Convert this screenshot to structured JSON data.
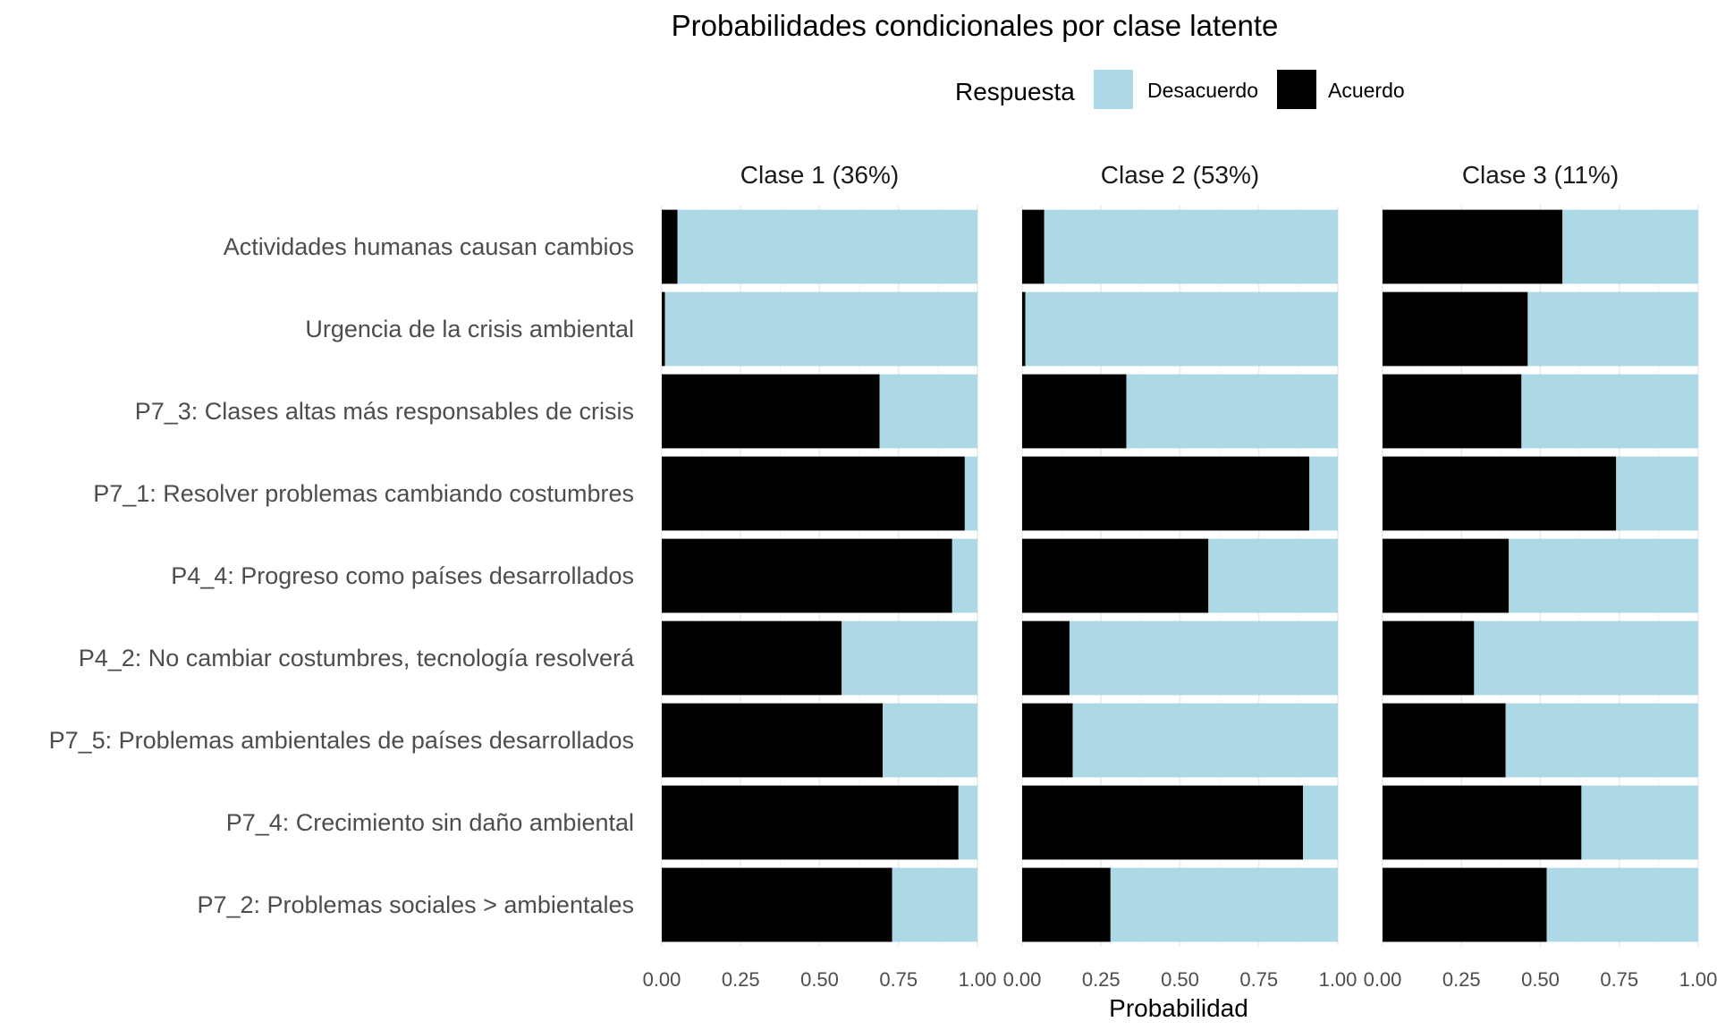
{
  "chart_data": {
    "type": "bar",
    "orientation": "horizontal",
    "stacked": true,
    "title": "Probabilidades condicionales por clase latente",
    "xlabel": "Probabilidad",
    "ylabel": "",
    "xlim": [
      0,
      1
    ],
    "x_ticks": [
      "0.00",
      "0.25",
      "0.50",
      "0.75",
      "1.00"
    ],
    "grid": true,
    "legend": {
      "title": "Respuesta",
      "position": "top",
      "entries": [
        {
          "name": "Desacuerdo",
          "color": "#ADD8E6"
        },
        {
          "name": "Acuerdo",
          "color": "#000000"
        }
      ]
    },
    "categories": [
      "Actividades humanas causan cambios",
      "Urgencia de la crisis ambiental",
      "P7_3: Clases altas más responsables de crisis",
      "P7_1: Resolver problemas cambiando costumbres",
      "P4_4: Progreso como países desarrollados",
      "P4_2: No cambiar costumbres, tecnología resolverá",
      "P7_5: Problemas ambientales de países desarrollados",
      "P7_4: Crecimiento sin daño ambiental",
      "P7_2: Problemas sociales > ambientales"
    ],
    "facets": [
      {
        "label": "Clase 1 (36%)",
        "series": [
          {
            "name": "Acuerdo",
            "values": [
              0.05,
              0.01,
              0.69,
              0.96,
              0.92,
              0.57,
              0.7,
              0.94,
              0.73
            ]
          },
          {
            "name": "Desacuerdo",
            "values": [
              0.95,
              0.99,
              0.31,
              0.04,
              0.08,
              0.43,
              0.3,
              0.06,
              0.27
            ]
          }
        ]
      },
      {
        "label": "Clase 2 (53%)",
        "series": [
          {
            "name": "Acuerdo",
            "values": [
              0.07,
              0.01,
              0.33,
              0.91,
              0.59,
              0.15,
              0.16,
              0.89,
              0.28
            ]
          },
          {
            "name": "Desacuerdo",
            "values": [
              0.93,
              0.99,
              0.67,
              0.09,
              0.41,
              0.85,
              0.84,
              0.11,
              0.72
            ]
          }
        ]
      },
      {
        "label": "Clase 3 (11%)",
        "series": [
          {
            "name": "Acuerdo",
            "values": [
              0.57,
              0.46,
              0.44,
              0.74,
              0.4,
              0.29,
              0.39,
              0.63,
              0.52
            ]
          },
          {
            "name": "Desacuerdo",
            "values": [
              0.43,
              0.54,
              0.56,
              0.26,
              0.6,
              0.71,
              0.61,
              0.37,
              0.48
            ]
          }
        ]
      }
    ]
  }
}
